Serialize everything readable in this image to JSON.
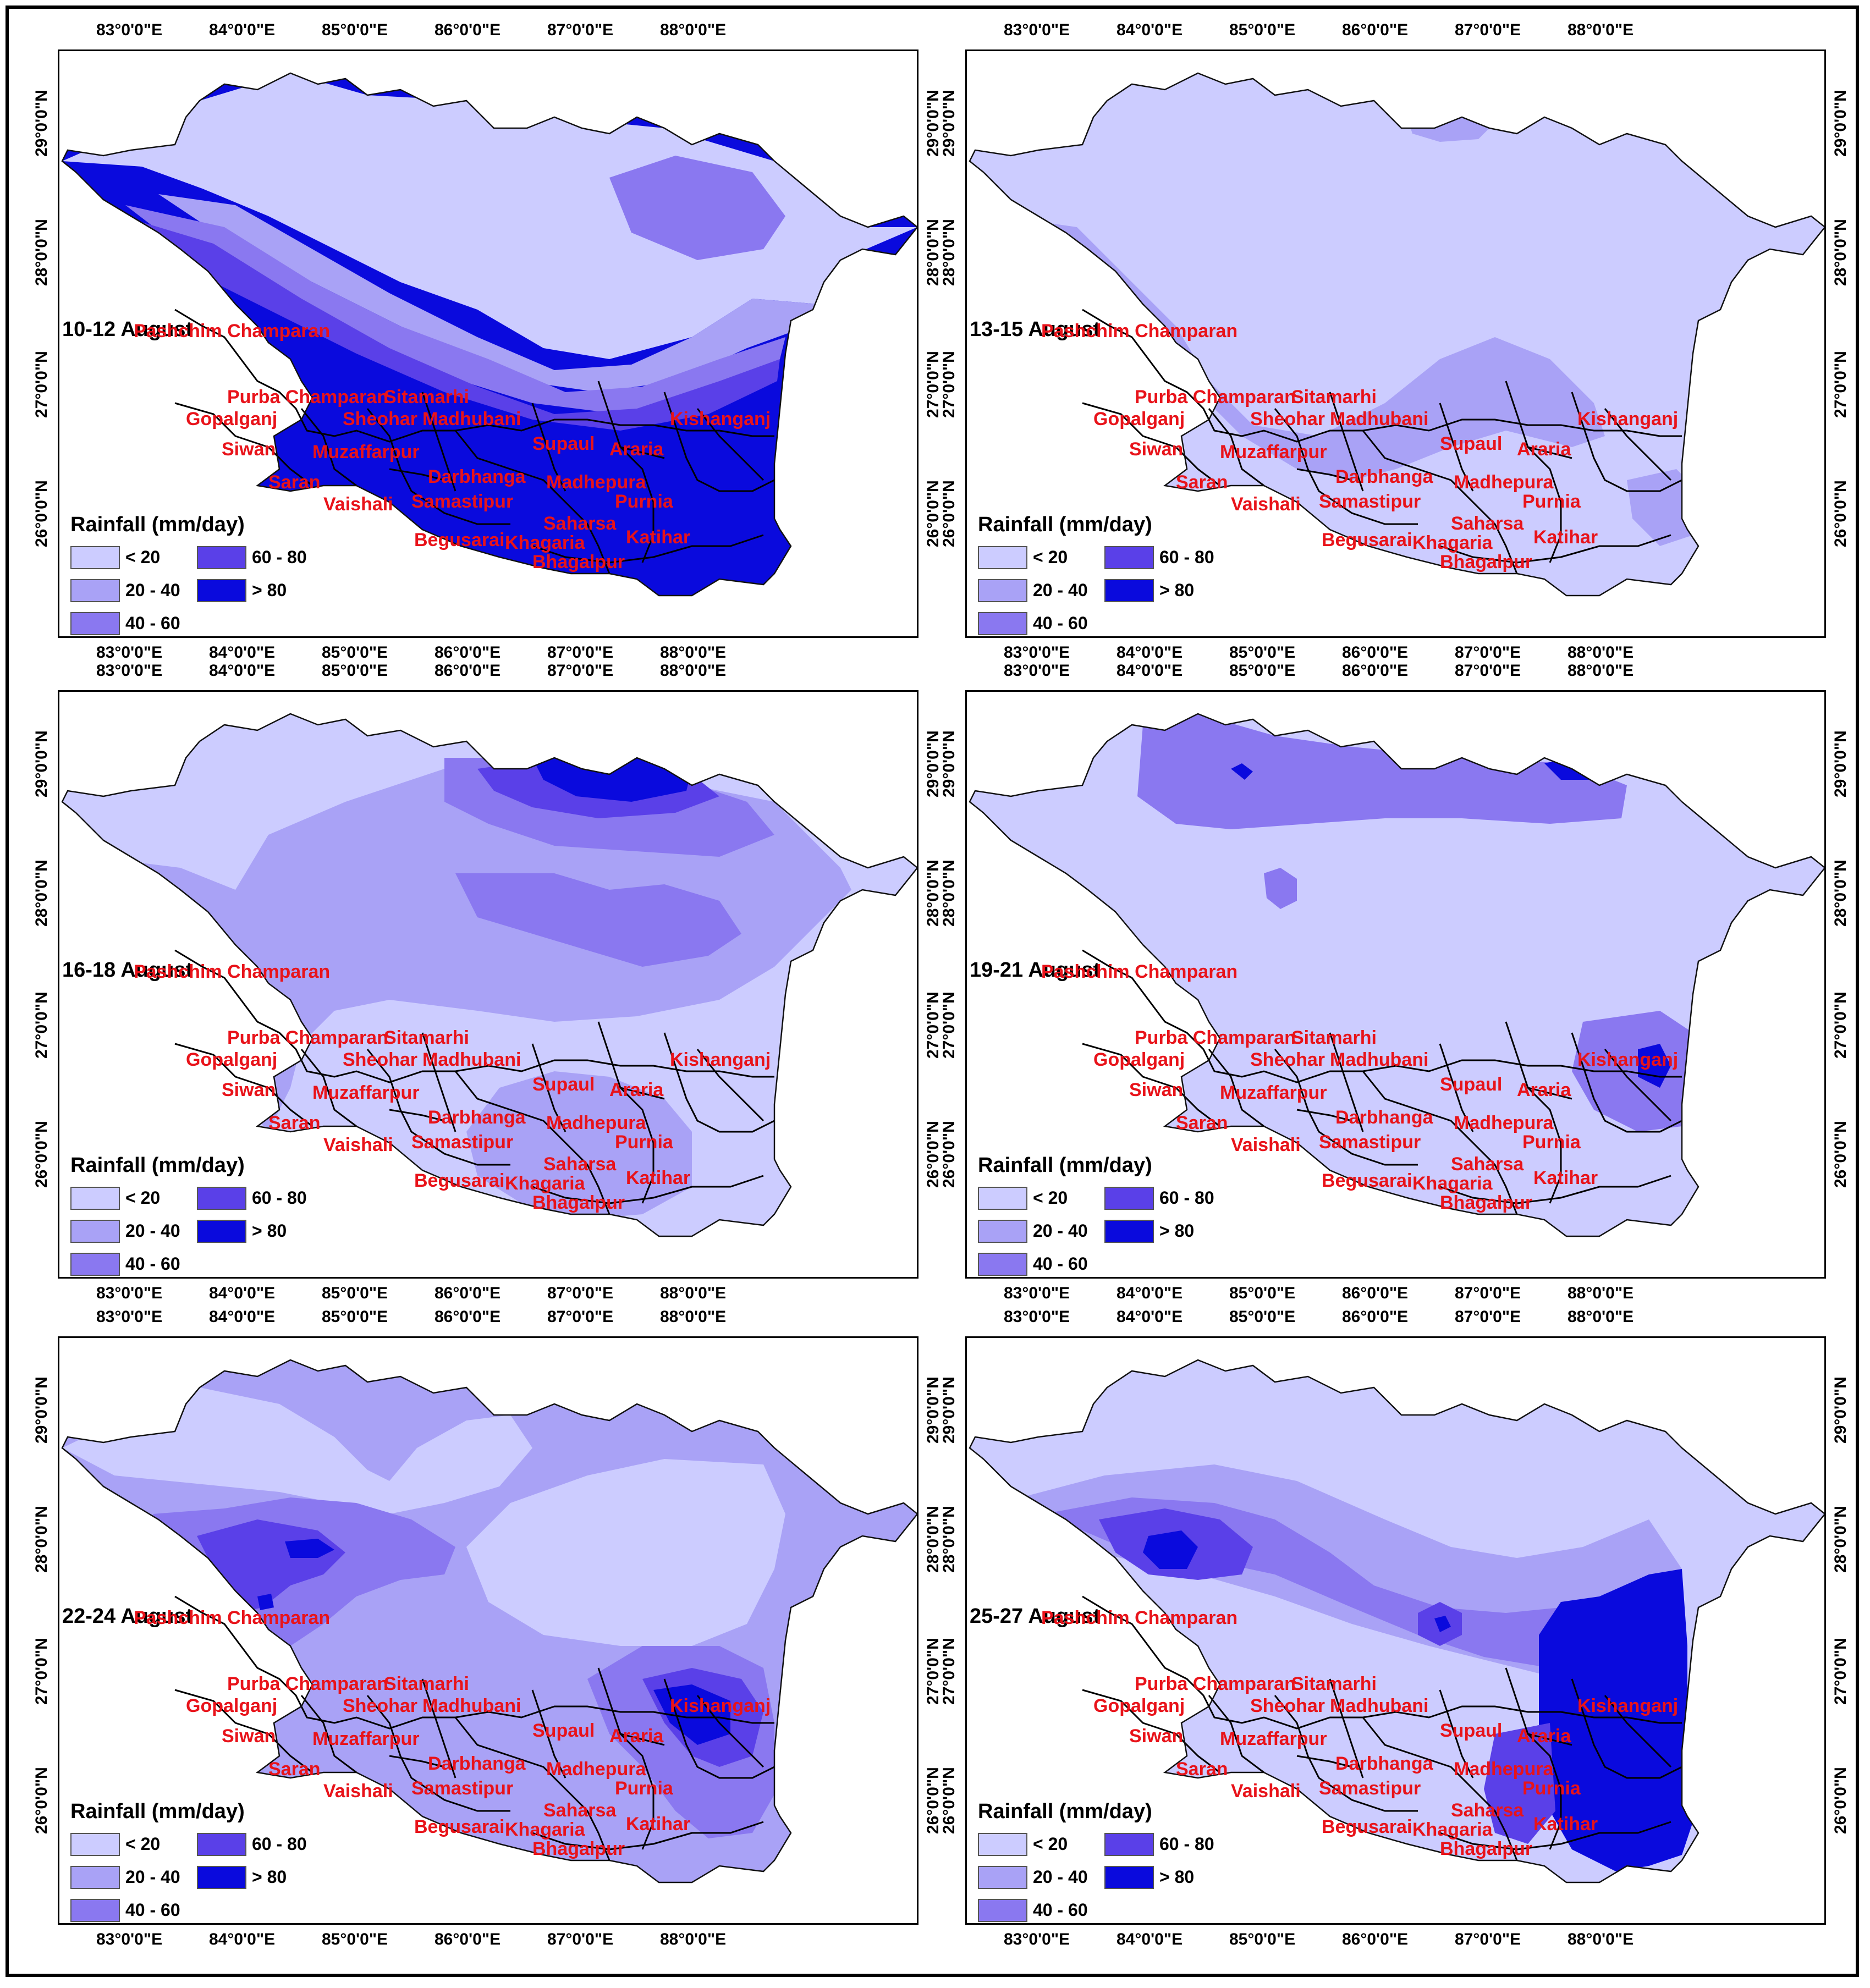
{
  "lon_labels": [
    "83°0'0\"E",
    "84°0'0\"E",
    "85°0'0\"E",
    "86°0'0\"E",
    "87°0'0\"E",
    "88°0'0\"E"
  ],
  "lat_labels": [
    "29°0'0\"N",
    "28°0'0\"N",
    "27°0'0\"N",
    "26°0'0\"N"
  ],
  "legend": {
    "title": "Rainfall (mm/day)",
    "classes": [
      {
        "label": "< 20",
        "color": "#ccccff"
      },
      {
        "label": "20 - 40",
        "color": "#a9a2f6"
      },
      {
        "label": "40 - 60",
        "color": "#8a78f0"
      },
      {
        "label": "60 - 80",
        "color": "#5a40e8"
      },
      {
        "label": "> 80",
        "color": "#0a0add"
      }
    ]
  },
  "districts": [
    "Pashchim Champaran",
    "Purba Champaran",
    "Sitamarhi",
    "Gopalganj",
    "Sheohar",
    "Madhubani",
    "Kishanganj",
    "Siwan",
    "Muzaffarpur",
    "Supaul",
    "Araria",
    "Darbhanga",
    "Madhepura",
    "Saran",
    "Vaishali",
    "Samastipur",
    "Purnia",
    "Saharsa",
    "Begusarai",
    "Khagaria",
    "Katihar",
    "Bhagalpur"
  ],
  "panels": [
    {
      "period": "10-12 August",
      "base_class": "> 80"
    },
    {
      "period": "13-15 August",
      "base_class": "< 20"
    },
    {
      "period": "16-18 August",
      "base_class": "< 20"
    },
    {
      "period": "19-21 August",
      "base_class": "< 20"
    },
    {
      "period": "22-24 August",
      "base_class": "20 - 40"
    },
    {
      "period": "25-27 August",
      "base_class": "< 20"
    }
  ]
}
